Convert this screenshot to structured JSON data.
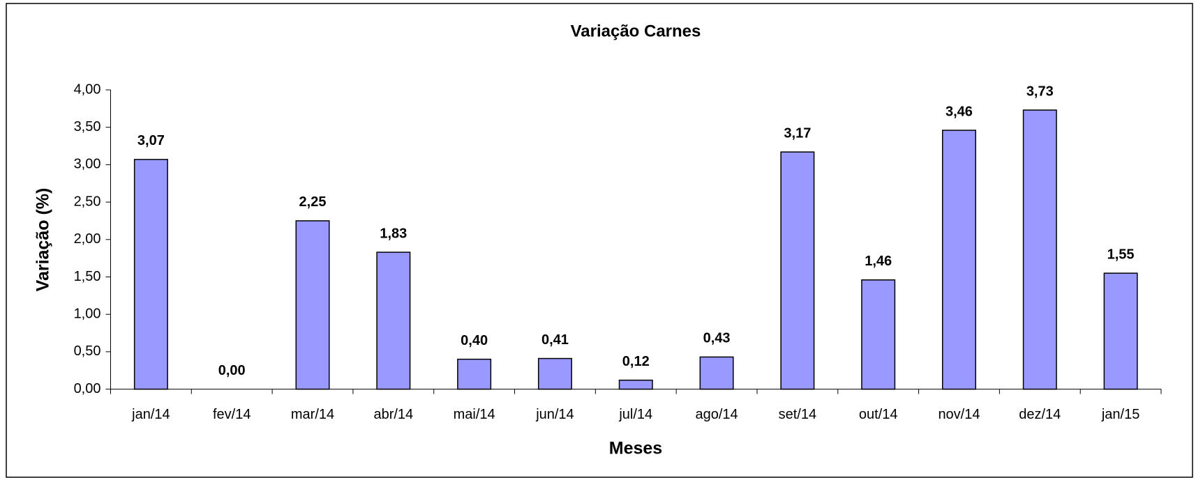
{
  "chart_data": {
    "type": "bar",
    "title": "Variação Carnes",
    "x_label": "Meses",
    "y_label": "Variação (%)",
    "categories": [
      "jan/14",
      "fev/14",
      "mar/14",
      "abr/14",
      "mai/14",
      "jun/14",
      "jul/14",
      "ago/14",
      "set/14",
      "out/14",
      "nov/14",
      "dez/14",
      "jan/15"
    ],
    "values": [
      3.07,
      0,
      2.25,
      1.83,
      0.4,
      0.41,
      0.12,
      0.43,
      3.17,
      1.46,
      3.46,
      3.73,
      1.55
    ],
    "value_labels": [
      "3,07",
      "0,00",
      "2,25",
      "1,83",
      "0,40",
      "0,41",
      "0,12",
      "0,43",
      "3,17",
      "1,46",
      "3,46",
      "3,73",
      "1,55"
    ],
    "color": "#9999ff",
    "ylim": [
      0,
      4
    ],
    "yticks": [
      {
        "value": 0,
        "label": "0,00"
      },
      {
        "value": 0.5,
        "label": "0,50"
      },
      {
        "value": 1,
        "label": "1,00"
      },
      {
        "value": 1.5,
        "label": "1,50"
      },
      {
        "value": 2,
        "label": "2,00"
      },
      {
        "value": 2.5,
        "label": "2,50"
      },
      {
        "value": 3,
        "label": "3,00"
      },
      {
        "value": 3.5,
        "label": "3,50"
      },
      {
        "value": 4,
        "label": "4,00"
      }
    ],
    "grid": false
  }
}
